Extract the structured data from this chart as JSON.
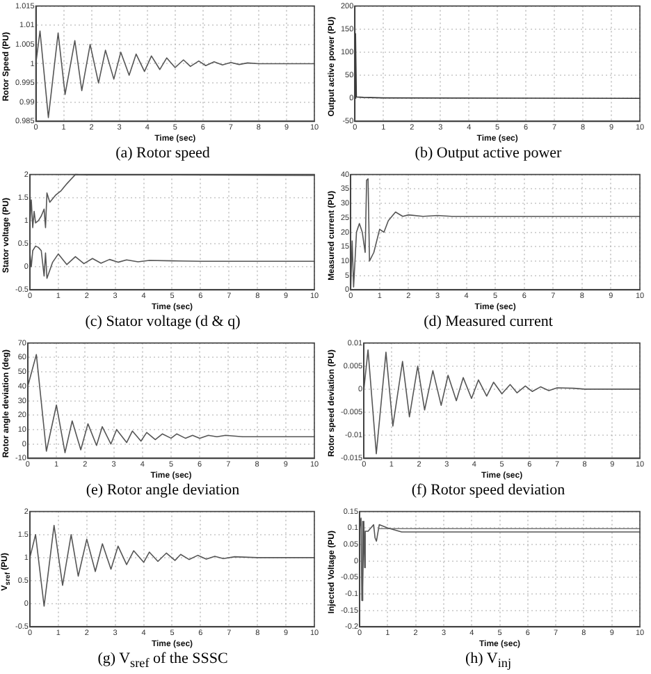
{
  "chart_data": [
    {
      "type": "line",
      "title": "(a) Rotor speed",
      "xlabel": "Time (sec)",
      "ylabel": "Rotor Speed (PU)",
      "xlim": [
        0,
        10
      ],
      "xticks": [
        0,
        1,
        2,
        3,
        4,
        5,
        6,
        7,
        8,
        9,
        10
      ],
      "ylim": [
        0.985,
        1.015
      ],
      "yticks": [
        0.985,
        0.99,
        0.995,
        1,
        1.005,
        1.01,
        1.015
      ],
      "grid": true,
      "marker": "none",
      "series": [
        {
          "color": "#555555",
          "x": [
            0,
            0.15,
            0.45,
            0.8,
            1.05,
            1.4,
            1.65,
            1.95,
            2.25,
            2.5,
            2.8,
            3.05,
            3.35,
            3.6,
            3.9,
            4.15,
            4.45,
            4.7,
            5.0,
            5.3,
            5.55,
            5.85,
            6.1,
            6.4,
            6.7,
            7.0,
            7.3,
            7.6,
            8,
            9,
            10
          ],
          "values": [
            1.0,
            1.0085,
            0.986,
            1.008,
            0.992,
            1.006,
            0.993,
            1.005,
            0.995,
            1.0035,
            0.996,
            1.003,
            0.997,
            1.0025,
            0.998,
            1.002,
            0.9985,
            1.0015,
            0.999,
            1.001,
            0.9993,
            1.0007,
            0.9995,
            1.0005,
            0.9997,
            1.0003,
            0.9998,
            1.0002,
            1,
            1,
            1
          ]
        }
      ]
    },
    {
      "type": "line",
      "title": "(b) Output active power",
      "xlabel": "Time (sec)",
      "ylabel": "Output active power (PU)",
      "xlim": [
        0,
        10
      ],
      "xticks": [
        0,
        1,
        2,
        3,
        4,
        5,
        6,
        7,
        8,
        9,
        10
      ],
      "ylim": [
        -50,
        200
      ],
      "yticks": [
        -50,
        0,
        50,
        100,
        150,
        200
      ],
      "grid": true,
      "marker": "none",
      "series": [
        {
          "color": "#333333",
          "x": [
            0,
            0.02,
            0.05,
            0.3,
            1,
            10
          ],
          "values": [
            0,
            140,
            3,
            2,
            1,
            0
          ]
        }
      ]
    },
    {
      "type": "line",
      "title": "(c) Stator voltage (d & q)",
      "xlabel": "Time (sec)",
      "ylabel": "Stator voltage (PU)",
      "xlim": [
        0,
        10
      ],
      "xticks": [
        0,
        1,
        2,
        3,
        4,
        5,
        6,
        7,
        8,
        9,
        10
      ],
      "ylim": [
        -0.5,
        2
      ],
      "yticks": [
        -0.5,
        0,
        0.5,
        1,
        1.5,
        2
      ],
      "grid": true,
      "marker": "none",
      "series": [
        {
          "color": "#555555",
          "x": [
            0,
            0.05,
            0.1,
            0.15,
            0.2,
            0.3,
            0.4,
            0.5,
            0.55,
            0.6,
            0.7,
            0.9,
            1.1,
            1.3,
            1.6,
            2,
            5,
            10
          ],
          "values": [
            0.9,
            1.45,
            0.85,
            1.2,
            0.95,
            1.0,
            1.1,
            1.25,
            0.85,
            1.6,
            1.4,
            1.55,
            1.65,
            1.8,
            2.0,
            1.99,
            1.99,
            1.98
          ]
        },
        {
          "color": "#555555",
          "x": [
            0,
            0.05,
            0.1,
            0.2,
            0.3,
            0.4,
            0.5,
            0.55,
            0.6,
            0.8,
            1.0,
            1.3,
            1.6,
            1.9,
            2.2,
            2.5,
            2.8,
            3.1,
            3.4,
            3.8,
            4.2,
            5,
            6,
            10
          ],
          "values": [
            0.3,
            0.0,
            0.35,
            0.45,
            0.42,
            0.35,
            -0.2,
            0.3,
            -0.25,
            0.1,
            0.28,
            0.05,
            0.22,
            0.07,
            0.18,
            0.08,
            0.16,
            0.1,
            0.15,
            0.11,
            0.14,
            0.13,
            0.12,
            0.12
          ]
        }
      ]
    },
    {
      "type": "line",
      "title": "(d) Measured current",
      "xlabel": "Time (sec)",
      "ylabel": "Measured current (PU)",
      "xlim": [
        0,
        10
      ],
      "xticks": [
        0,
        1,
        2,
        3,
        4,
        5,
        6,
        7,
        8,
        9,
        10
      ],
      "ylim": [
        0,
        40
      ],
      "yticks": [
        0,
        5,
        10,
        15,
        20,
        25,
        30,
        35,
        40
      ],
      "grid": true,
      "marker": "none",
      "series": [
        {
          "color": "#555555",
          "x": [
            0,
            0.05,
            0.1,
            0.2,
            0.3,
            0.4,
            0.5,
            0.55,
            0.6,
            0.65,
            0.8,
            1.0,
            1.15,
            1.3,
            1.55,
            1.8,
            2,
            2.5,
            3,
            3.5,
            10
          ],
          "values": [
            0,
            17,
            1,
            20,
            23,
            20,
            13,
            38,
            38.5,
            10,
            13,
            21,
            20,
            24,
            27,
            25.5,
            26,
            25.5,
            25.8,
            25.5,
            25.5
          ]
        }
      ]
    },
    {
      "type": "line",
      "title": "(e) Rotor angle deviation",
      "xlabel": "Time (sec)",
      "ylabel": "Rotor angle deviation (deg)",
      "xlim": [
        0,
        10
      ],
      "xticks": [
        0,
        1,
        2,
        3,
        4,
        5,
        6,
        7,
        8,
        9,
        10
      ],
      "ylim": [
        -10,
        70
      ],
      "yticks": [
        -10,
        0,
        10,
        20,
        30,
        40,
        50,
        60,
        70
      ],
      "grid": true,
      "marker": "none",
      "series": [
        {
          "color": "#555555",
          "x": [
            0,
            0.3,
            0.65,
            1.0,
            1.3,
            1.55,
            1.85,
            2.1,
            2.4,
            2.6,
            2.9,
            3.1,
            3.45,
            3.65,
            3.95,
            4.15,
            4.45,
            4.7,
            5,
            5.2,
            5.5,
            5.75,
            6.0,
            6.3,
            6.6,
            6.9,
            7.5,
            10
          ],
          "values": [
            40,
            62,
            -5,
            27,
            -6,
            16,
            -4,
            14,
            -1,
            12,
            0,
            10,
            1,
            9,
            2,
            8,
            3,
            7,
            4,
            7,
            4,
            6,
            4,
            6,
            5,
            6,
            5,
            5
          ]
        }
      ]
    },
    {
      "type": "line",
      "title": "(f) Rotor speed deviation",
      "xlabel": "Time (sec)",
      "ylabel": "Rotor speed deviation (PU)",
      "xlim": [
        0,
        10
      ],
      "xticks": [
        0,
        1,
        2,
        3,
        4,
        5,
        6,
        7,
        8,
        9,
        10
      ],
      "ylim": [
        -0.015,
        0.01
      ],
      "yticks": [
        -0.015,
        -0.01,
        -0.005,
        0,
        0.005,
        0.01
      ],
      "grid": true,
      "marker": "none",
      "series": [
        {
          "color": "#555555",
          "x": [
            0,
            0.15,
            0.45,
            0.8,
            1.05,
            1.4,
            1.65,
            1.95,
            2.2,
            2.5,
            2.8,
            3.05,
            3.35,
            3.6,
            3.9,
            4.15,
            4.45,
            4.7,
            5.0,
            5.3,
            5.55,
            5.85,
            6.1,
            6.4,
            6.7,
            7.0,
            7.6,
            8,
            9,
            10
          ],
          "values": [
            0,
            0.0085,
            -0.014,
            0.008,
            -0.008,
            0.006,
            -0.006,
            0.005,
            -0.0045,
            0.004,
            -0.0035,
            0.003,
            -0.0025,
            0.0025,
            -0.002,
            0.002,
            -0.0015,
            0.0015,
            -0.001,
            0.001,
            -0.0008,
            0.0007,
            -0.0005,
            0.0005,
            -0.0003,
            0.0003,
            0.0002,
            0,
            0,
            0
          ]
        }
      ]
    },
    {
      "type": "line",
      "title": "(g) V$_{sref}$ of the SSSC",
      "xlabel": "Time (sec)",
      "ylabel": "V$_{sref}$ (PU)",
      "xlim": [
        0,
        10
      ],
      "xticks": [
        0,
        1,
        2,
        3,
        4,
        5,
        6,
        7,
        8,
        9,
        10
      ],
      "ylim": [
        -0.5,
        2
      ],
      "yticks": [
        -0.5,
        0,
        0.5,
        1,
        1.5,
        2
      ],
      "grid": true,
      "marker": "none",
      "series": [
        {
          "color": "#555555",
          "x": [
            0,
            0.2,
            0.5,
            0.85,
            1.15,
            1.45,
            1.7,
            2.0,
            2.3,
            2.55,
            2.85,
            3.1,
            3.4,
            3.65,
            4.0,
            4.2,
            4.5,
            4.8,
            5.1,
            5.3,
            5.6,
            5.9,
            6.2,
            6.5,
            6.8,
            7.2,
            8,
            9,
            10
          ],
          "values": [
            1,
            1.5,
            -0.05,
            1.7,
            0.4,
            1.5,
            0.6,
            1.4,
            0.7,
            1.3,
            0.75,
            1.25,
            0.85,
            1.15,
            0.9,
            1.12,
            0.92,
            1.1,
            0.94,
            1.07,
            0.96,
            1.05,
            0.97,
            1.03,
            0.98,
            1.02,
            1,
            1,
            1
          ]
        }
      ]
    },
    {
      "type": "line",
      "title": "(h) V$_{inj}$",
      "xlabel": "Time (sec)",
      "ylabel": "Injected Voltage (PU)",
      "xlim": [
        0,
        10
      ],
      "xticks": [
        0,
        1,
        2,
        3,
        4,
        5,
        6,
        7,
        8,
        9,
        10
      ],
      "ylim": [
        -0.2,
        0.15
      ],
      "yticks": [
        -0.2,
        -0.15,
        -0.1,
        -0.05,
        0,
        0.05,
        0.1,
        0.15
      ],
      "grid": true,
      "marker": "none",
      "series": [
        {
          "color": "#555555",
          "x": [
            0,
            0.05,
            0.08,
            0.1,
            0.12,
            0.15,
            0.18,
            0.2,
            0.3,
            0.5,
            0.55,
            0.6,
            0.7,
            1.0,
            1.5,
            10
          ],
          "values": [
            0.1,
            0.13,
            -0.12,
            0.12,
            -0.08,
            0.12,
            -0.02,
            0.09,
            0.09,
            0.11,
            0.07,
            0.06,
            0.11,
            0.1,
            0.088,
            0.088
          ]
        },
        {
          "color": "#777777",
          "x": [
            0.7,
            10
          ],
          "values": [
            0.098,
            0.098
          ]
        }
      ]
    }
  ]
}
